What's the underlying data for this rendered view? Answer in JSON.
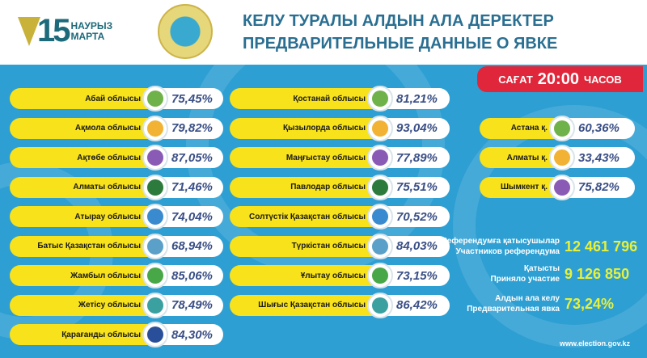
{
  "header": {
    "logo_number": "15",
    "logo_line1": "НАУРЫЗ",
    "logo_line2": "МАРТА",
    "title_kz": "КЕЛУ ТУРАЛЫ АЛДЫН АЛА ДЕРЕКТЕР",
    "title_ru": "ПРЕДВАРИТЕЛЬНЫЕ ДАННЫЕ О ЯВКЕ"
  },
  "time_badge": {
    "prefix": "САҒАТ",
    "time": "20:00",
    "suffix": "ЧАСОВ"
  },
  "colors": {
    "panel": "#2d9fd3",
    "label": "#f7e21b",
    "badge": "#e0263a",
    "value": "#3a4f86",
    "stat": "#e8f03a"
  },
  "regions_left": [
    {
      "name": "Абай облысы",
      "value": "75,45%"
    },
    {
      "name": "Ақмола облысы",
      "value": "79,82%"
    },
    {
      "name": "Ақтөбе облысы",
      "value": "87,05%"
    },
    {
      "name": "Алматы облысы",
      "value": "71,46%"
    },
    {
      "name": "Атырау облысы",
      "value": "74,04%"
    },
    {
      "name": "Батыс Қазақстан облысы",
      "value": "68,94%"
    },
    {
      "name": "Жамбыл облысы",
      "value": "85,06%"
    },
    {
      "name": "Жетісу облысы",
      "value": "78,49%"
    },
    {
      "name": "Қарағанды облысы",
      "value": "84,30%"
    }
  ],
  "regions_middle": [
    {
      "name": "Қостанай облысы",
      "value": "81,21%"
    },
    {
      "name": "Қызылорда облысы",
      "value": "93,04%"
    },
    {
      "name": "Маңғыстау облысы",
      "value": "77,89%"
    },
    {
      "name": "Павлодар облысы",
      "value": "75,51%"
    },
    {
      "name": "Солтүстік Қазақстан облысы",
      "value": "70,52%"
    },
    {
      "name": "Түркістан облысы",
      "value": "84,03%"
    },
    {
      "name": "Ұлытау облысы",
      "value": "73,15%"
    },
    {
      "name": "Шығыс Қазақстан облысы",
      "value": "86,42%"
    }
  ],
  "cities": [
    {
      "name": "Астана қ.",
      "value": "60,36%"
    },
    {
      "name": "Алматы қ.",
      "value": "33,43%"
    },
    {
      "name": "Шымкент қ.",
      "value": "75,82%"
    }
  ],
  "stats": [
    {
      "label_kz": "Референдумға қатысушылар",
      "label_ru": "Участников референдума",
      "value": "12 461 796"
    },
    {
      "label_kz": "Қатысты",
      "label_ru": "Приняло участие",
      "value": "9 126 850"
    },
    {
      "label_kz": "Алдын ала келу",
      "label_ru": "Предварительная явка",
      "value": "73,24%"
    }
  ],
  "footer": {
    "url": "www.election.gov.kz"
  }
}
